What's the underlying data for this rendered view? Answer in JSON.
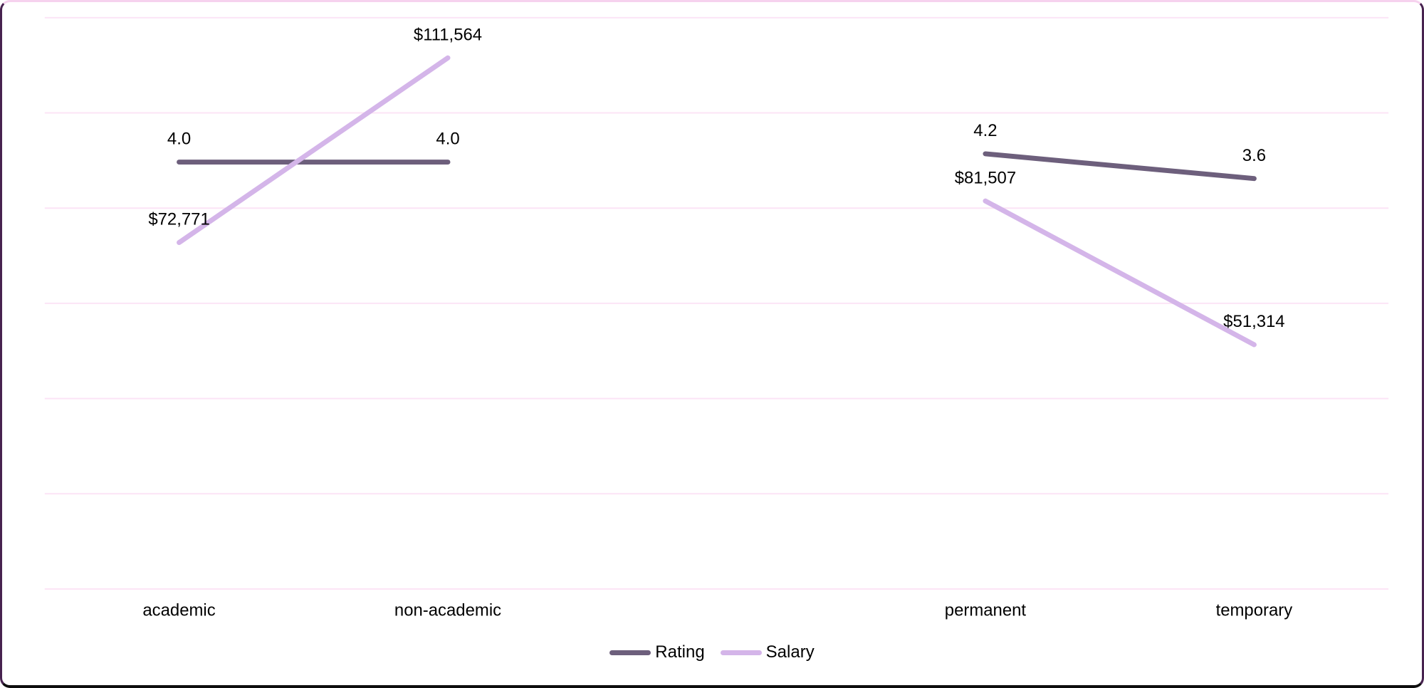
{
  "frame": {
    "background": "#ffffff",
    "border_top_color": "#f6d2ee",
    "border_side_color": "#47224f",
    "border_bottom_color": "#0d0d0d"
  },
  "chart_data": {
    "type": "line",
    "title": "",
    "xlabel": "",
    "ylabel": "",
    "categories": [
      "academic",
      "non-academic",
      "",
      "permanent",
      "temporary"
    ],
    "series": [
      {
        "name": "Rating",
        "axis": "y2",
        "color": "#6d5f7c",
        "stroke_width": 7,
        "values": [
          4.0,
          4.0,
          null,
          4.2,
          3.6
        ],
        "data_labels": [
          "4.0",
          "4.0",
          null,
          "4.2",
          "3.6"
        ]
      },
      {
        "name": "Salary",
        "axis": "y1",
        "color": "#d4b5e9",
        "stroke_width": 7,
        "values": [
          72771,
          111564,
          null,
          81507,
          51314
        ],
        "data_labels": [
          "$72,771",
          "$111,564",
          null,
          "$81,507",
          "$51,314"
        ]
      }
    ],
    "y1lim": [
      0,
      120000
    ],
    "y2lim": [
      -6.35,
      7.5
    ],
    "gridlines": {
      "horizontal_count": 7,
      "color": "#fce4f6"
    },
    "legend_position": "bottom-center",
    "data_labels_shown": true,
    "data_label_color": "#000000",
    "category_label_color": "#000000"
  }
}
